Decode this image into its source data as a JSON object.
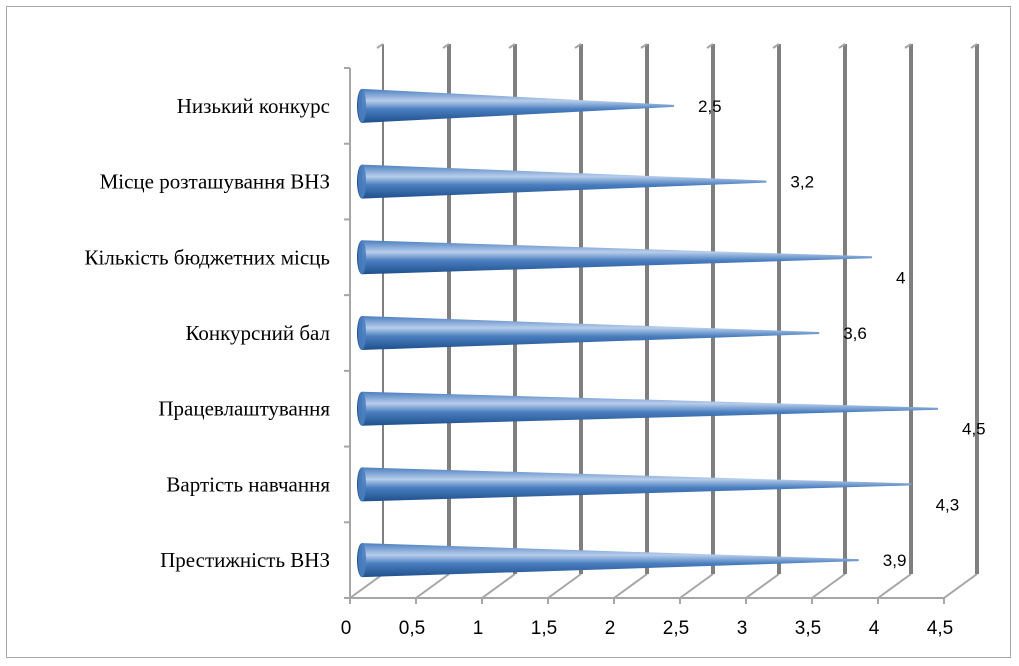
{
  "chart_data": {
    "type": "bar",
    "orientation": "horizontal",
    "style": "3d-cone",
    "categories": [
      "Престижність ВНЗ",
      "Вартість навчання",
      "Працевлаштування",
      "Конкурсний бал",
      "Кількість бюджетних місць",
      "Місце розташування ВНЗ",
      "Низький конкурс"
    ],
    "values": [
      3.9,
      4.3,
      4.5,
      3.6,
      4.0,
      3.2,
      2.5
    ],
    "value_labels": [
      "3,9",
      "4,3",
      "4,5",
      "3,6",
      "4",
      "3,2",
      "2,5"
    ],
    "xlim": [
      0,
      4.5
    ],
    "xticks": [
      0,
      0.5,
      1,
      1.5,
      2,
      2.5,
      3,
      3.5,
      4,
      4.5
    ],
    "xtick_labels": [
      "0",
      "0,5",
      "1",
      "1,5",
      "2",
      "2,5",
      "3",
      "3,5",
      "4",
      "4,5"
    ],
    "grid": true,
    "legend": "none",
    "title": "",
    "xlabel": "",
    "ylabel": "",
    "colors": {
      "bar_dark": "#1f4f8c",
      "bar_mid": "#4a7ebf",
      "bar_light": "#b7cdeb",
      "gridline": "#a6a6a6",
      "gridline_shadow": "#7f7f7f"
    }
  }
}
